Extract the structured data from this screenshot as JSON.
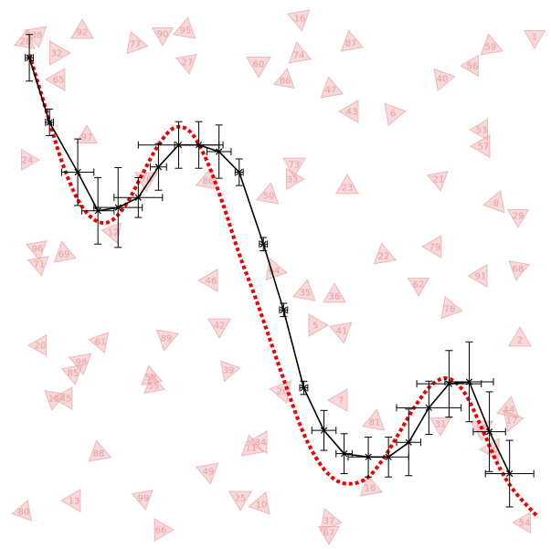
{
  "chart_data": {
    "type": "line",
    "title": "",
    "xlabel": "",
    "ylabel": "",
    "axes_visible": false,
    "grid": false,
    "legend": "none",
    "xlim": [
      -0.25,
      6.35
    ],
    "ylim": [
      -7.3,
      0.8
    ],
    "colors": {
      "data_line": "#000000",
      "fit_line": "#ee0000",
      "triangles": "#f2b8b8",
      "triangle_labels": "#e08f8f"
    },
    "series": [
      {
        "style": "solid black line, x markers, error bars",
        "points": [
          {
            "x": 0.0,
            "y": 0.0,
            "xerr": 0.05,
            "yerr": 0.35
          },
          {
            "x": 0.25,
            "y": -0.97,
            "xerr": 0.05,
            "yerr": 0.2
          },
          {
            "x": 0.6,
            "y": -1.72,
            "xerr": 0.2,
            "yerr": 0.5
          },
          {
            "x": 0.85,
            "y": -2.3,
            "xerr": 0.2,
            "yerr": 0.5
          },
          {
            "x": 1.1,
            "y": -2.25,
            "xerr": 0.3,
            "yerr": 0.6
          },
          {
            "x": 1.35,
            "y": -2.1,
            "xerr": 0.3,
            "yerr": 0.3
          },
          {
            "x": 1.6,
            "y": -1.64,
            "xerr": 0.1,
            "yerr": 0.35
          },
          {
            "x": 1.85,
            "y": -1.31,
            "xerr": 0.5,
            "yerr": 0.35
          },
          {
            "x": 2.1,
            "y": -1.31,
            "xerr": 0.3,
            "yerr": 0.35
          },
          {
            "x": 2.35,
            "y": -1.41,
            "xerr": 0.15,
            "yerr": 0.4
          },
          {
            "x": 2.6,
            "y": -1.72,
            "xerr": 0.05,
            "yerr": 0.2
          },
          {
            "x": 2.9,
            "y": -2.8,
            "xerr": 0.05,
            "yerr": 0.1
          },
          {
            "x": 3.15,
            "y": -3.79,
            "xerr": 0.05,
            "yerr": 0.1
          },
          {
            "x": 3.4,
            "y": -4.96,
            "xerr": 0.05,
            "yerr": 0.1
          },
          {
            "x": 3.65,
            "y": -5.6,
            "xerr": 0.15,
            "yerr": 0.3
          },
          {
            "x": 3.9,
            "y": -5.95,
            "xerr": 0.1,
            "yerr": 0.3
          },
          {
            "x": 4.2,
            "y": -6.0,
            "xerr": 0.25,
            "yerr": 0.3
          },
          {
            "x": 4.45,
            "y": -6.0,
            "xerr": 0.25,
            "yerr": 0.3
          },
          {
            "x": 4.7,
            "y": -5.78,
            "xerr": 0.15,
            "yerr": 0.5
          },
          {
            "x": 4.95,
            "y": -5.26,
            "xerr": 0.4,
            "yerr": 0.4
          },
          {
            "x": 5.2,
            "y": -4.9,
            "xerr": 0.4,
            "yerr": 0.5
          },
          {
            "x": 5.45,
            "y": -4.87,
            "xerr": 0.3,
            "yerr": 0.6
          },
          {
            "x": 5.7,
            "y": -5.62,
            "xerr": 0.2,
            "yerr": 0.6
          },
          {
            "x": 5.95,
            "y": -6.25,
            "xerr": 0.3,
            "yerr": 0.5
          }
        ]
      },
      {
        "style": "red dotted curve",
        "x": [
          0.0,
          0.2,
          0.4,
          0.6,
          0.8,
          1.0,
          1.2,
          1.4,
          1.6,
          1.8,
          2.0,
          2.2,
          2.4,
          2.6,
          2.8,
          3.0,
          3.2,
          3.4,
          3.6,
          3.8,
          4.0,
          4.2,
          4.4,
          4.6,
          4.8,
          5.0,
          5.2,
          5.4,
          5.6,
          5.8,
          6.0,
          6.3
        ],
        "y": [
          0.05,
          -0.75,
          -1.55,
          -2.13,
          -2.43,
          -2.46,
          -2.2,
          -1.75,
          -1.31,
          -1.05,
          -1.12,
          -1.55,
          -2.2,
          -2.95,
          -3.6,
          -4.3,
          -5.0,
          -5.65,
          -6.1,
          -6.35,
          -6.4,
          -6.3,
          -6.0,
          -5.6,
          -5.2,
          -4.9,
          -4.82,
          -5.05,
          -5.55,
          -6.1,
          -6.5,
          -6.9
        ]
      }
    ]
  },
  "background_triangles": [
    {
      "label": "38"
    },
    {
      "label": "28"
    },
    {
      "label": "32"
    },
    {
      "label": "65"
    },
    {
      "label": "92"
    },
    {
      "label": "77"
    },
    {
      "label": "90"
    },
    {
      "label": "95"
    },
    {
      "label": "27"
    },
    {
      "label": "16"
    },
    {
      "label": "87"
    },
    {
      "label": "59"
    },
    {
      "label": "1"
    },
    {
      "label": "56"
    },
    {
      "label": "74"
    },
    {
      "label": "60"
    },
    {
      "label": "86"
    },
    {
      "label": "47"
    },
    {
      "label": "43"
    },
    {
      "label": "6"
    },
    {
      "label": "40"
    },
    {
      "label": "53"
    },
    {
      "label": "57"
    },
    {
      "label": "21"
    },
    {
      "label": "23"
    },
    {
      "label": "24"
    },
    {
      "label": "97"
    },
    {
      "label": "76"
    },
    {
      "label": "73"
    },
    {
      "label": "33"
    },
    {
      "label": "86"
    },
    {
      "label": "50"
    },
    {
      "label": "8"
    },
    {
      "label": "29"
    },
    {
      "label": "79"
    },
    {
      "label": "22"
    },
    {
      "label": "64"
    },
    {
      "label": "12"
    },
    {
      "label": "96"
    },
    {
      "label": "69"
    },
    {
      "label": "71"
    },
    {
      "label": "46"
    },
    {
      "label": "91"
    },
    {
      "label": "68"
    },
    {
      "label": "62"
    },
    {
      "label": "35"
    },
    {
      "label": "36"
    },
    {
      "label": "78"
    },
    {
      "label": "5"
    },
    {
      "label": "41"
    },
    {
      "label": "42"
    },
    {
      "label": "89"
    },
    {
      "label": "61"
    },
    {
      "label": "20"
    },
    {
      "label": "2"
    },
    {
      "label": "98"
    },
    {
      "label": "85"
    },
    {
      "label": "58"
    },
    {
      "label": "55"
    },
    {
      "label": "39"
    },
    {
      "label": "26"
    },
    {
      "label": "15"
    },
    {
      "label": "45"
    },
    {
      "label": "7"
    },
    {
      "label": "81"
    },
    {
      "label": "44"
    },
    {
      "label": "17"
    },
    {
      "label": "52"
    },
    {
      "label": "31"
    },
    {
      "label": "30"
    },
    {
      "label": "34"
    },
    {
      "label": "11"
    },
    {
      "label": "88"
    },
    {
      "label": "49"
    },
    {
      "label": "18"
    },
    {
      "label": "80"
    },
    {
      "label": "13"
    },
    {
      "label": "99"
    },
    {
      "label": "25"
    },
    {
      "label": "10"
    },
    {
      "label": "37"
    },
    {
      "label": "67"
    },
    {
      "label": "66"
    },
    {
      "label": "54"
    }
  ]
}
